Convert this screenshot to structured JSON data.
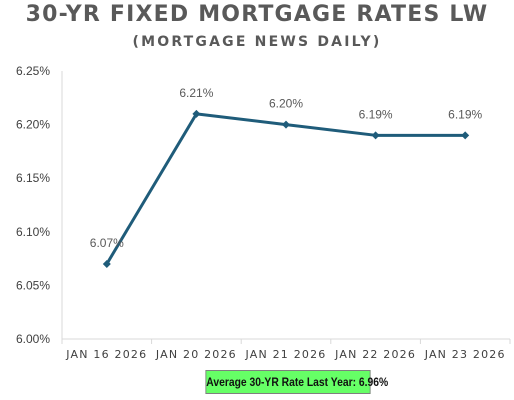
{
  "colors": {
    "line": "#1f5c7a",
    "marker": "#1f5c7a",
    "axis": "#d9d9d9",
    "tick_text": "#404040",
    "label_text": "#595959",
    "badge_bg": "#66ff66"
  },
  "footer": {
    "text": "Average 30-YR Rate Last Year: 6.96%"
  },
  "chart_data": {
    "type": "line",
    "title": "30-YR FIXED MORTGAGE RATES LW",
    "subtitle": "(MORTGAGE NEWS DAILY)",
    "categories": [
      "JAN 16 2026",
      "JAN 20 2026",
      "JAN 21 2026",
      "JAN 22 2026",
      "JAN 23 2026"
    ],
    "series": [
      {
        "values": [
          6.07,
          6.21,
          6.2,
          6.19,
          6.19
        ],
        "data_labels": [
          "6.07%",
          "6.21%",
          "6.20%",
          "6.19%",
          "6.19%"
        ]
      }
    ],
    "ylim": [
      6.0,
      6.25
    ],
    "yticks": [
      6.0,
      6.05,
      6.1,
      6.15,
      6.2,
      6.25
    ],
    "ytick_labels": [
      "6.00%",
      "6.05%",
      "6.10%",
      "6.15%",
      "6.20%",
      "6.25%"
    ],
    "grid": false,
    "legend": "none"
  }
}
